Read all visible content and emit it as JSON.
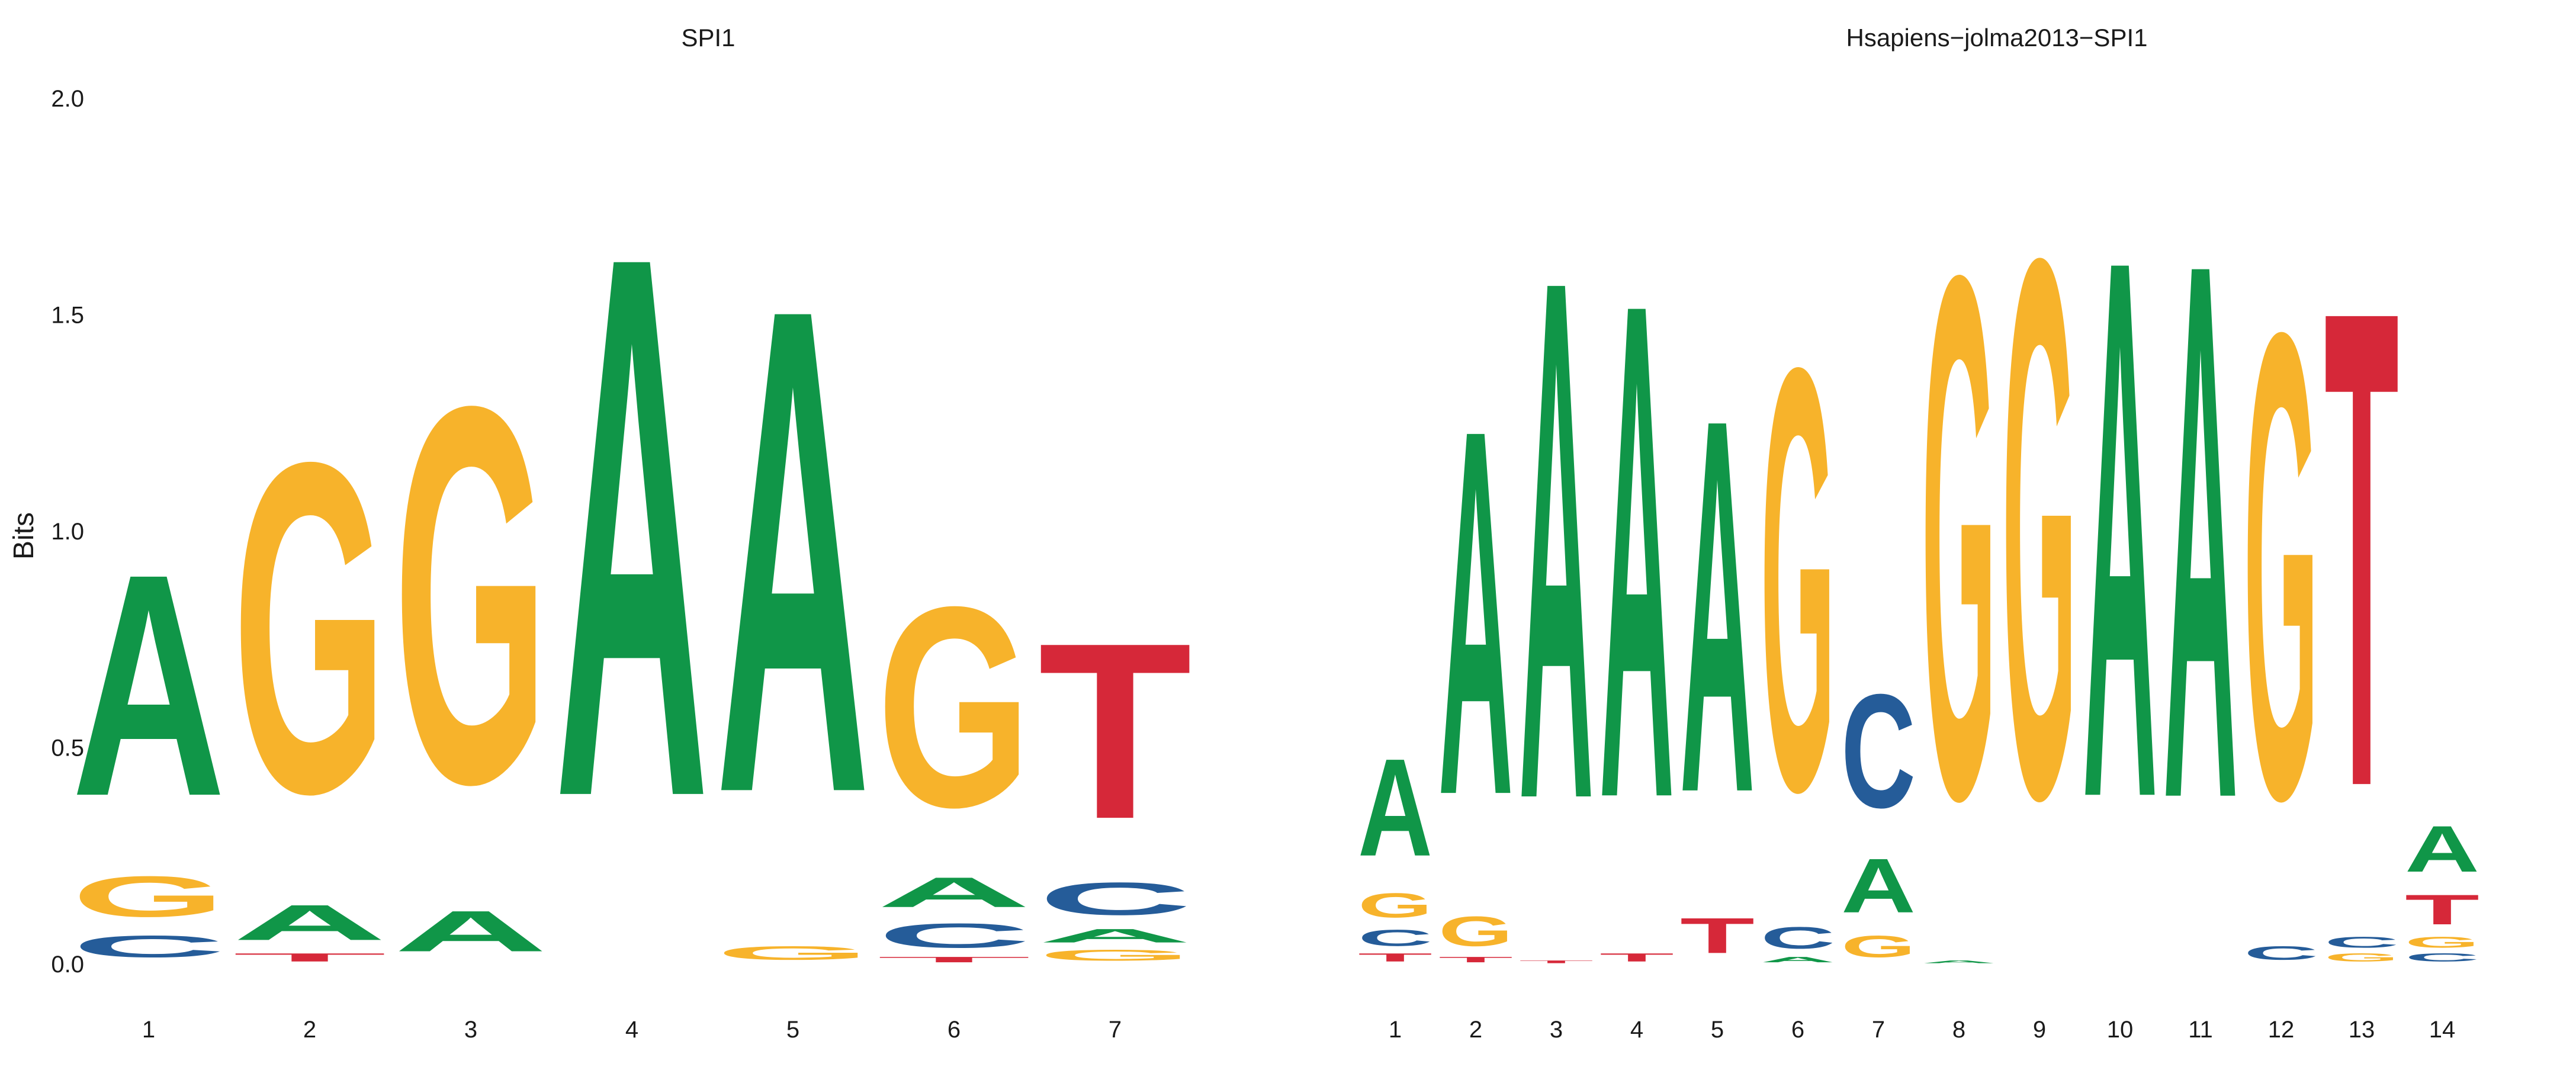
{
  "chart_data": [
    {
      "type": "sequence-logo",
      "title": "SPI1",
      "ylabel": "Bits",
      "ylim": [
        0,
        2
      ],
      "yticks": [
        "0.0",
        "0.5",
        "1.0",
        "1.5",
        "2.0"
      ],
      "positions": [
        "1",
        "2",
        "3",
        "4",
        "5",
        "6",
        "7"
      ],
      "letters": [
        [
          [
            "C",
            0.08
          ],
          [
            "G",
            0.15
          ],
          [
            "A",
            0.82
          ]
        ],
        [
          [
            "T",
            0.03
          ],
          [
            "A",
            0.13
          ],
          [
            "G",
            1.22
          ]
        ],
        [
          [
            "A",
            0.15
          ],
          [
            "G",
            1.39
          ]
        ],
        [
          [
            "A",
            2.0
          ]
        ],
        [
          [
            "G",
            0.05
          ],
          [
            "A",
            1.79
          ]
        ],
        [
          [
            "T",
            0.02
          ],
          [
            "C",
            0.09
          ],
          [
            "A",
            0.11
          ],
          [
            "G",
            0.74
          ]
        ],
        [
          [
            "G",
            0.04
          ],
          [
            "A",
            0.05
          ],
          [
            "C",
            0.12
          ],
          [
            "T",
            0.65
          ]
        ]
      ]
    },
    {
      "type": "sequence-logo",
      "title": "Hsapiens−jolma2013−SPI1",
      "ylabel": "",
      "ylim": [
        0,
        2
      ],
      "yticks": [],
      "positions": [
        "1",
        "2",
        "3",
        "4",
        "5",
        "6",
        "7",
        "8",
        "9",
        "10",
        "11",
        "12",
        "13",
        "14"
      ],
      "letters": [
        [
          [
            "T",
            0.03
          ],
          [
            "C",
            0.06
          ],
          [
            "G",
            0.09
          ],
          [
            "A",
            0.36
          ]
        ],
        [
          [
            "T",
            0.02
          ],
          [
            "G",
            0.11
          ],
          [
            "A",
            1.35
          ]
        ],
        [
          [
            "T",
            0.01
          ],
          [
            "A",
            1.92
          ]
        ],
        [
          [
            "T",
            0.03
          ],
          [
            "A",
            1.83
          ]
        ],
        [
          [
            "T",
            0.13
          ],
          [
            "A",
            1.38
          ]
        ],
        [
          [
            "A",
            0.02
          ],
          [
            "C",
            0.08
          ],
          [
            "G",
            1.56
          ]
        ],
        [
          [
            "G",
            0.08
          ],
          [
            "A",
            0.2
          ],
          [
            "C",
            0.42
          ]
        ],
        [
          [
            "A",
            0.01
          ],
          [
            "G",
            1.93
          ]
        ],
        [
          [
            "G",
            1.99
          ]
        ],
        [
          [
            "A",
            1.99
          ]
        ],
        [
          [
            "A",
            1.98
          ]
        ],
        [
          [
            "C",
            0.05
          ],
          [
            "G",
            1.72
          ]
        ],
        [
          [
            "G",
            0.03
          ],
          [
            "C",
            0.04
          ],
          [
            "T",
            1.76
          ]
        ],
        [
          [
            "C",
            0.03
          ],
          [
            "G",
            0.04
          ],
          [
            "T",
            0.11
          ],
          [
            "A",
            0.17
          ]
        ]
      ]
    }
  ],
  "letter_colors": {
    "A": "#109648",
    "C": "#255C99",
    "G": "#F7B32B",
    "T": "#D62839"
  }
}
